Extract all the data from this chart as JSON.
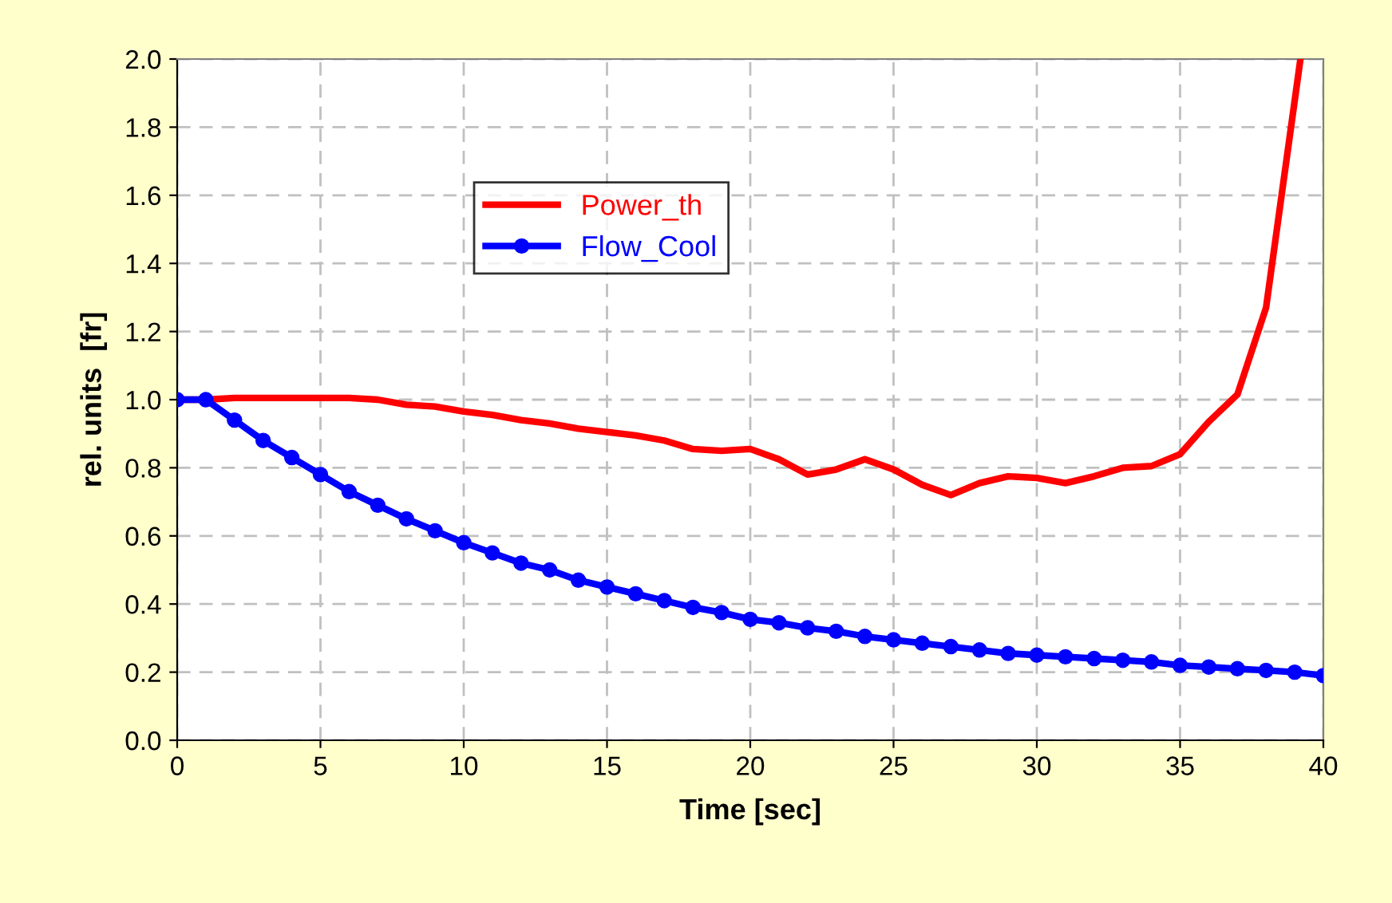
{
  "chart_data": {
    "type": "line",
    "xlabel": "Time [sec]",
    "ylabel": "rel. units  [fr]",
    "xlim": [
      0,
      40
    ],
    "xticks": [
      0,
      5,
      10,
      15,
      20,
      25,
      30,
      35,
      40
    ],
    "ylim": [
      0,
      2
    ],
    "yticks": [
      {
        "value": 0,
        "label": "0.0"
      },
      {
        "value": 0.2,
        "label": "0.2"
      },
      {
        "value": 0.4,
        "label": "0.4"
      },
      {
        "value": 0.6,
        "label": "0.6"
      },
      {
        "value": 0.8,
        "label": "0.8"
      },
      {
        "value": 1,
        "label": "1.0"
      },
      {
        "value": 1.2,
        "label": "1.2"
      },
      {
        "value": 1.4,
        "label": "1.4"
      },
      {
        "value": 1.6,
        "label": "1.6"
      },
      {
        "value": 1.8,
        "label": "1.8"
      },
      {
        "value": 2,
        "label": "2.0"
      }
    ],
    "grid": true,
    "legend": "top",
    "line_style": "solid",
    "series": [
      {
        "name": "Power_th",
        "color": "#ff0000",
        "marker": "none",
        "x": [
          0,
          1,
          2,
          3,
          4,
          5,
          6,
          7,
          8,
          9,
          10,
          11,
          12,
          13,
          14,
          15,
          16,
          17,
          18,
          19,
          20,
          21,
          22,
          23,
          24,
          25,
          26,
          27,
          28,
          29,
          30,
          31,
          32,
          33,
          34,
          35,
          36,
          37,
          38,
          39.2
        ],
        "values": [
          1.0,
          1.0,
          1.005,
          1.005,
          1.005,
          1.005,
          1.005,
          1.0,
          0.985,
          0.98,
          0.965,
          0.955,
          0.94,
          0.93,
          0.915,
          0.905,
          0.895,
          0.88,
          0.855,
          0.85,
          0.855,
          0.825,
          0.78,
          0.795,
          0.825,
          0.795,
          0.75,
          0.72,
          0.755,
          0.775,
          0.77,
          0.755,
          0.775,
          0.8,
          0.805,
          0.84,
          0.935,
          1.015,
          1.27,
          2.0
        ]
      },
      {
        "name": "Flow_Cool",
        "color": "#0000ff",
        "marker": "circle",
        "x": [
          0,
          1,
          2,
          3,
          4,
          5,
          6,
          7,
          8,
          9,
          10,
          11,
          12,
          13,
          14,
          15,
          16,
          17,
          18,
          19,
          20,
          21,
          22,
          23,
          24,
          25,
          26,
          27,
          28,
          29,
          30,
          31,
          32,
          33,
          34,
          35,
          36,
          37,
          38,
          39,
          40
        ],
        "values": [
          1.0,
          1.0,
          0.94,
          0.88,
          0.83,
          0.78,
          0.73,
          0.69,
          0.65,
          0.615,
          0.58,
          0.55,
          0.52,
          0.5,
          0.47,
          0.45,
          0.43,
          0.41,
          0.39,
          0.375,
          0.355,
          0.345,
          0.33,
          0.32,
          0.305,
          0.295,
          0.285,
          0.275,
          0.265,
          0.255,
          0.25,
          0.245,
          0.24,
          0.235,
          0.23,
          0.22,
          0.215,
          0.21,
          0.205,
          0.2,
          0.19
        ]
      }
    ]
  }
}
